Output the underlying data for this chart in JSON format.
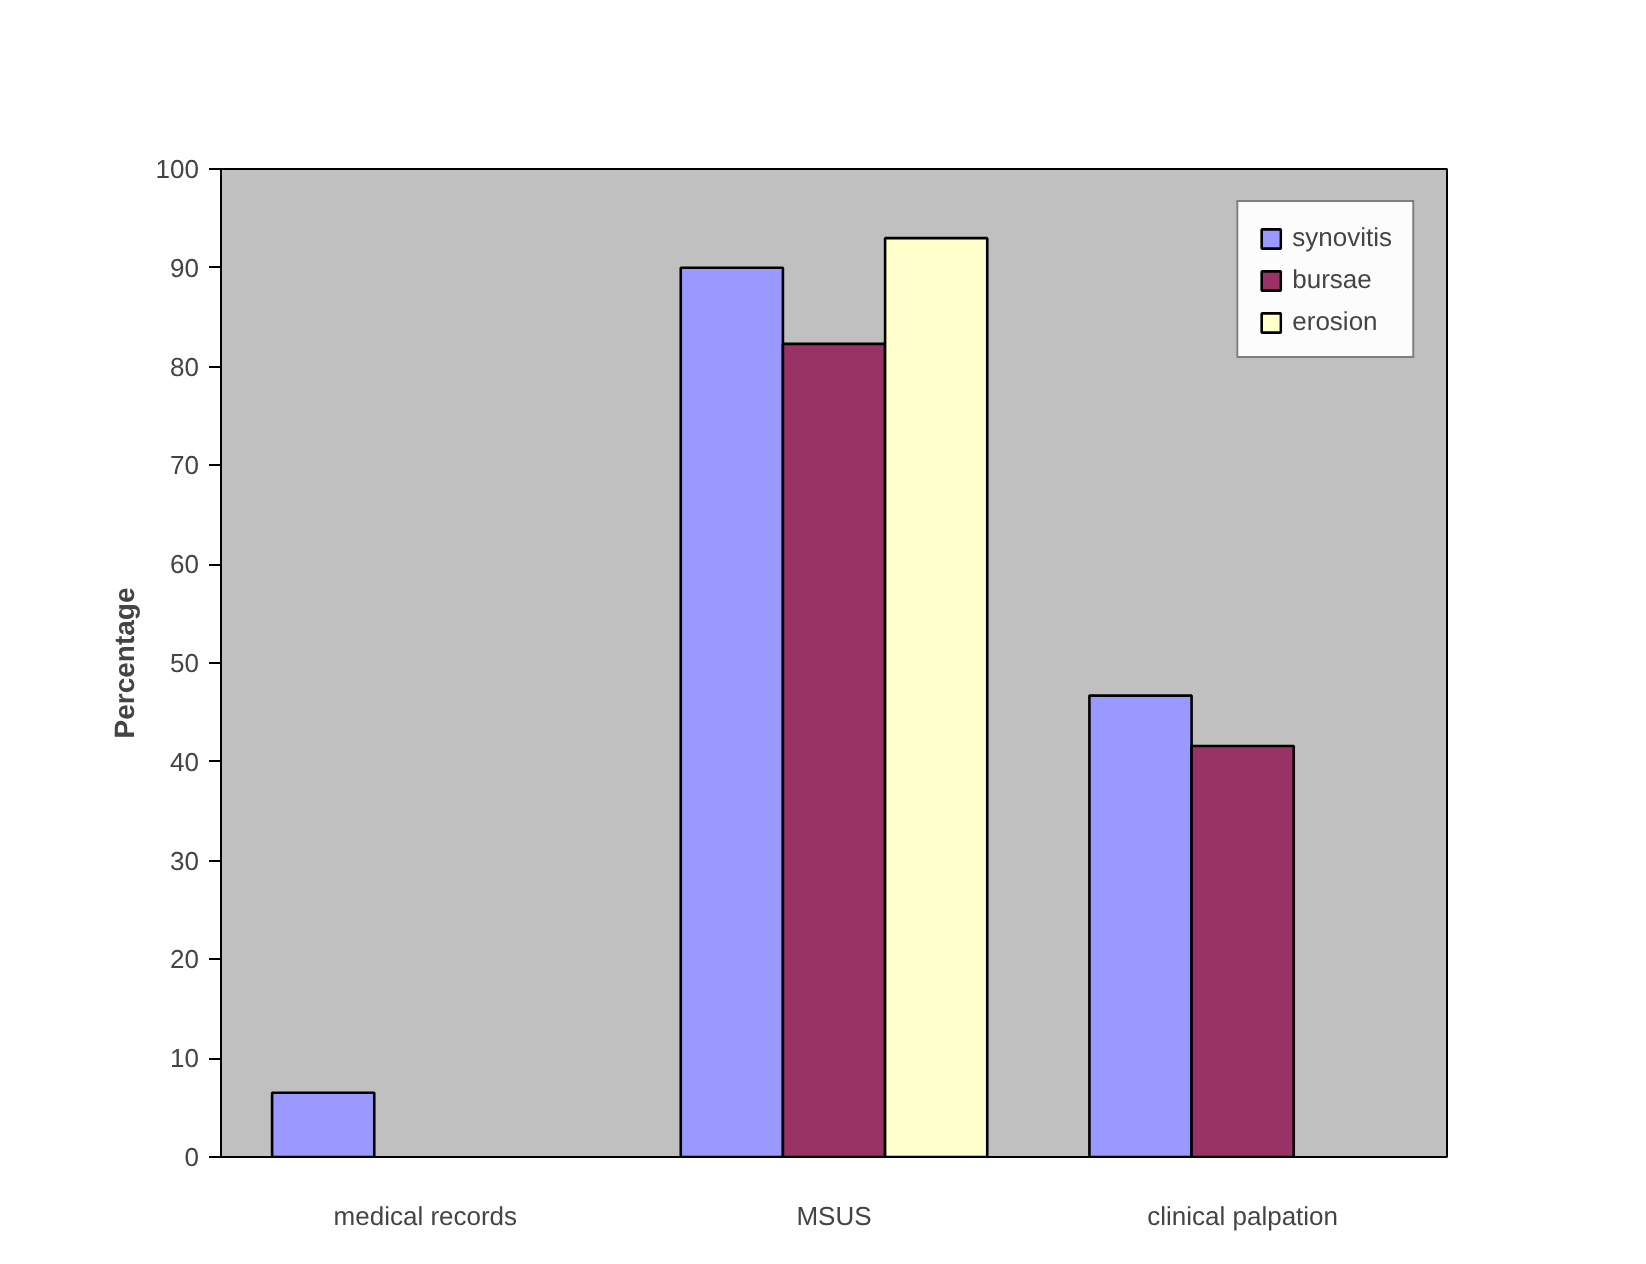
{
  "chart_data": {
    "type": "bar",
    "ylabel": "Percentage",
    "categories": [
      "medical records",
      "MSUS",
      "clinical palpation"
    ],
    "series": [
      {
        "name": "synovitis",
        "color": "#9999ff",
        "values": [
          6.5,
          90,
          46.7
        ]
      },
      {
        "name": "bursae",
        "color": "#993366",
        "values": [
          null,
          82.3,
          41.6
        ]
      },
      {
        "name": "erosion",
        "color": "#ffffcc",
        "values": [
          null,
          93,
          null
        ]
      }
    ],
    "ylim": [
      0,
      100
    ],
    "yticks": [
      0,
      10,
      20,
      30,
      40,
      50,
      60,
      70,
      80,
      90,
      100
    ],
    "grid": false,
    "legend": "top right"
  }
}
